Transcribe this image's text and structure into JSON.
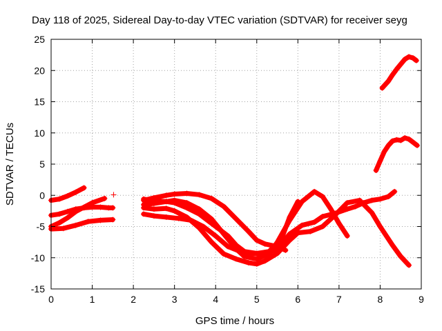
{
  "chart_data": {
    "type": "scatter",
    "title": "Day 118 of 2025, Sidereal Day-to-day VTEC variation (SDTVAR) for receiver seyg",
    "xlabel": "GPS time / hours",
    "ylabel": "SDTVAR / TECUs",
    "xlim": [
      0,
      9
    ],
    "ylim": [
      -15,
      25
    ],
    "xticks": [
      0,
      1,
      2,
      3,
      4,
      5,
      6,
      7,
      8,
      9
    ],
    "yticks": [
      -15,
      -10,
      -5,
      0,
      5,
      10,
      15,
      20,
      25
    ],
    "grid": true,
    "marker": "+",
    "color": "#ff0000",
    "series": [
      {
        "name": "s1",
        "x": [
          0.0,
          0.2,
          0.4,
          0.6,
          0.8
        ],
        "y": [
          -0.8,
          -0.6,
          -0.1,
          0.5,
          1.2
        ]
      },
      {
        "name": "s2",
        "x": [
          0.0,
          0.2,
          0.4,
          0.6,
          0.8,
          1.0,
          1.2,
          1.4,
          1.5
        ],
        "y": [
          -3.2,
          -3.0,
          -2.6,
          -2.2,
          -2.0,
          -1.9,
          -1.9,
          -2.0,
          -2.0
        ]
      },
      {
        "name": "s3",
        "x": [
          0.0,
          0.2,
          0.4,
          0.6,
          0.8,
          1.0,
          1.3
        ],
        "y": [
          -5.0,
          -4.4,
          -3.6,
          -2.6,
          -1.9,
          -1.2,
          -0.5
        ]
      },
      {
        "name": "s4",
        "x": [
          0.0,
          0.3,
          0.6,
          0.9,
          1.2,
          1.5
        ],
        "y": [
          -5.4,
          -5.3,
          -4.8,
          -4.2,
          -4.0,
          -3.9
        ]
      },
      {
        "name": "s5",
        "x": [
          1.52
        ],
        "y": [
          0.1
        ]
      },
      {
        "name": "s6",
        "x": [
          2.25,
          2.5,
          2.8,
          3.0,
          3.3,
          3.6,
          3.9,
          4.2,
          4.5,
          4.8,
          5.0,
          5.2,
          5.5,
          5.7
        ],
        "y": [
          -0.8,
          -0.4,
          0.0,
          0.2,
          0.3,
          0.1,
          -0.5,
          -1.8,
          -3.8,
          -5.8,
          -7.2,
          -7.8,
          -8.2,
          -8.8
        ]
      },
      {
        "name": "s7",
        "x": [
          2.25,
          2.5,
          2.8,
          3.0,
          3.3,
          3.6,
          3.9,
          4.2,
          4.5,
          4.7,
          5.0,
          5.3,
          5.5,
          5.8,
          6.1,
          6.4,
          6.6,
          6.8,
          7.0,
          7.2
        ],
        "y": [
          -0.6,
          -0.9,
          -1.0,
          -0.8,
          -1.2,
          -2.2,
          -3.8,
          -6.2,
          -8.6,
          -9.8,
          -10.2,
          -9.4,
          -7.5,
          -4.0,
          -1.0,
          0.6,
          -0.2,
          -2.2,
          -4.5,
          -6.5
        ]
      },
      {
        "name": "s8",
        "x": [
          2.25,
          2.5,
          2.8,
          3.0,
          3.3,
          3.6,
          3.9,
          4.1,
          4.3,
          4.5,
          4.7,
          5.0,
          5.3,
          5.6,
          5.8,
          6.0
        ],
        "y": [
          -1.5,
          -1.3,
          -1.0,
          -1.2,
          -2.0,
          -3.0,
          -4.5,
          -5.5,
          -6.5,
          -8.0,
          -9.0,
          -9.3,
          -9.0,
          -7.0,
          -3.5,
          -1.0
        ]
      },
      {
        "name": "s9",
        "x": [
          2.25,
          2.5,
          2.8,
          3.0,
          3.3,
          3.6,
          3.9,
          4.2,
          4.5,
          4.8,
          5.0,
          5.2,
          5.5,
          5.8,
          6.0,
          6.3,
          6.6,
          6.9,
          7.2,
          7.5,
          7.8,
          8.0,
          8.3,
          8.5,
          8.7
        ],
        "y": [
          -2.0,
          -2.2,
          -2.1,
          -2.5,
          -3.5,
          -5.2,
          -7.5,
          -9.4,
          -10.2,
          -10.8,
          -11.0,
          -10.5,
          -9.3,
          -7.2,
          -6.0,
          -5.8,
          -5.0,
          -3.2,
          -1.2,
          -0.8,
          -2.8,
          -5.0,
          -8.0,
          -9.8,
          -11.2
        ]
      },
      {
        "name": "s10",
        "x": [
          2.25,
          2.5,
          2.8,
          3.1,
          3.4,
          3.7,
          4.0,
          4.3,
          4.6,
          4.9,
          5.2,
          5.5,
          5.8,
          6.1,
          6.4,
          6.6,
          6.9,
          7.2,
          7.4,
          7.6,
          7.8,
          8.0,
          8.2,
          8.35
        ],
        "y": [
          -3.0,
          -3.3,
          -3.5,
          -3.7,
          -4.0,
          -5.0,
          -6.5,
          -8.2,
          -9.0,
          -9.3,
          -9.5,
          -8.5,
          -6.2,
          -4.8,
          -4.3,
          -3.4,
          -2.9,
          -2.2,
          -1.8,
          -1.2,
          -0.8,
          -0.6,
          -0.2,
          0.6
        ]
      },
      {
        "name": "s11",
        "x": [
          7.9,
          8.0,
          8.1,
          8.2,
          8.3,
          8.4,
          8.5,
          8.6,
          8.7,
          8.8,
          8.9
        ],
        "y": [
          4.0,
          5.5,
          7.0,
          8.0,
          8.7,
          8.9,
          8.8,
          9.2,
          9.0,
          8.5,
          8.0
        ]
      },
      {
        "name": "s12",
        "x": [
          8.05,
          8.2,
          8.3,
          8.4,
          8.5,
          8.6,
          8.7,
          8.8,
          8.88
        ],
        "y": [
          17.2,
          18.3,
          19.3,
          20.2,
          21.0,
          21.8,
          22.2,
          22.0,
          21.6
        ]
      }
    ]
  }
}
